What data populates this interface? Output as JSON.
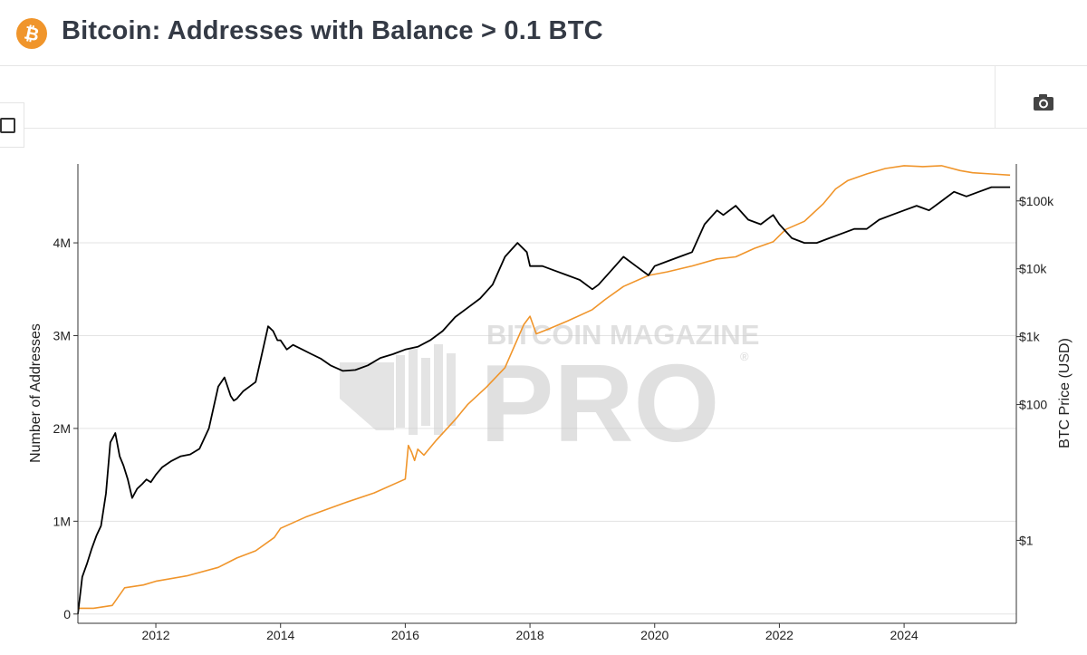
{
  "header": {
    "logo_glyph": "₿",
    "title": "Bitcoin: Addresses with Balance > 0.1 BTC"
  },
  "toolbar": {
    "camera_icon": "camera-icon",
    "checkbox_icon": "checkbox-icon"
  },
  "watermark": {
    "line1": "BITCOIN MAGAZINE",
    "line2": "PRO",
    "mark": "®"
  },
  "colors": {
    "addresses_line": "#000000",
    "price_line": "#f0952b",
    "brand": "#f0952b",
    "title": "#343a45"
  },
  "chart_data": {
    "type": "line",
    "title": "Bitcoin: Addresses with Balance > 0.1 BTC",
    "xlabel": "",
    "ylabel": "Number of Addresses",
    "y2label": "BTC Price (USD)",
    "x_range": [
      2010.75,
      2025.8
    ],
    "ylim": [
      -100000,
      4850000
    ],
    "y2_scale": "log",
    "y2lim": [
      0.06,
      350000
    ],
    "x_ticks": [
      "2012",
      "2014",
      "2016",
      "2018",
      "2020",
      "2022",
      "2024"
    ],
    "y_ticks": [
      "0",
      "1M",
      "2M",
      "3M",
      "4M"
    ],
    "y2_ticks": [
      "$1",
      "$100",
      "$1k",
      "$10k",
      "$100k"
    ],
    "grid": true,
    "legend": "none",
    "series": [
      {
        "axis": "left",
        "x": [
          2010.75,
          2010.82,
          2010.9,
          2010.97,
          2011.05,
          2011.12,
          2011.2,
          2011.27,
          2011.35,
          2011.42,
          2011.48,
          2011.55,
          2011.62,
          2011.7,
          2011.78,
          2011.85,
          2011.92,
          2012.0,
          2012.1,
          2012.25,
          2012.4,
          2012.55,
          2012.7,
          2012.85,
          2013.0,
          2013.1,
          2013.2,
          2013.25,
          2013.3,
          2013.4,
          2013.5,
          2013.6,
          2013.7,
          2013.8,
          2013.88,
          2013.95,
          2014.0,
          2014.1,
          2014.2,
          2014.35,
          2014.5,
          2014.65,
          2014.8,
          2015.0,
          2015.2,
          2015.4,
          2015.6,
          2015.8,
          2016.0,
          2016.2,
          2016.4,
          2016.6,
          2016.8,
          2017.0,
          2017.2,
          2017.4,
          2017.6,
          2017.8,
          2017.95,
          2018.0,
          2018.2,
          2018.4,
          2018.6,
          2018.8,
          2019.0,
          2019.1,
          2019.3,
          2019.5,
          2019.7,
          2019.9,
          2020.0,
          2020.2,
          2020.4,
          2020.6,
          2020.8,
          2021.0,
          2021.1,
          2021.3,
          2021.5,
          2021.7,
          2021.9,
          2022.0,
          2022.2,
          2022.4,
          2022.6,
          2022.8,
          2023.0,
          2023.2,
          2023.4,
          2023.6,
          2023.8,
          2024.0,
          2024.2,
          2024.4,
          2024.6,
          2024.8,
          2025.0,
          2025.2,
          2025.4,
          2025.6,
          2025.7
        ],
        "y": [
          0,
          400000,
          550000,
          700000,
          850000,
          950000,
          1300000,
          1850000,
          1950000,
          1700000,
          1600000,
          1450000,
          1250000,
          1350000,
          1400000,
          1450000,
          1420000,
          1500000,
          1580000,
          1650000,
          1700000,
          1720000,
          1780000,
          2000000,
          2450000,
          2550000,
          2350000,
          2300000,
          2320000,
          2400000,
          2450000,
          2500000,
          2800000,
          3100000,
          3050000,
          2950000,
          2950000,
          2850000,
          2900000,
          2850000,
          2800000,
          2750000,
          2680000,
          2620000,
          2630000,
          2680000,
          2760000,
          2800000,
          2850000,
          2880000,
          2950000,
          3050000,
          3200000,
          3300000,
          3400000,
          3550000,
          3850000,
          4000000,
          3900000,
          3750000,
          3750000,
          3700000,
          3650000,
          3600000,
          3500000,
          3550000,
          3700000,
          3850000,
          3750000,
          3650000,
          3750000,
          3800000,
          3850000,
          3900000,
          4200000,
          4350000,
          4300000,
          4400000,
          4250000,
          4200000,
          4300000,
          4200000,
          4050000,
          4000000,
          4000000,
          4050000,
          4100000,
          4150000,
          4150000,
          4250000,
          4300000,
          4350000,
          4400000,
          4350000,
          4450000,
          4550000,
          4500000,
          4550000,
          4600000,
          4600000,
          4600000
        ]
      },
      {
        "axis": "right",
        "x": [
          2010.75,
          2011.0,
          2011.3,
          2011.5,
          2011.8,
          2012.0,
          2012.5,
          2013.0,
          2013.3,
          2013.6,
          2013.9,
          2014.0,
          2014.4,
          2014.8,
          2015.0,
          2015.5,
          2016.0,
          2016.05,
          2016.1,
          2016.15,
          2016.2,
          2016.3,
          2016.5,
          2016.8,
          2017.0,
          2017.3,
          2017.6,
          2017.9,
          2018.0,
          2018.1,
          2018.3,
          2018.6,
          2019.0,
          2019.2,
          2019.5,
          2019.9,
          2020.2,
          2020.6,
          2021.0,
          2021.3,
          2021.6,
          2021.9,
          2022.1,
          2022.4,
          2022.7,
          2022.9,
          2023.1,
          2023.4,
          2023.7,
          2024.0,
          2024.3,
          2024.6,
          2024.9,
          2025.1,
          2025.4,
          2025.7
        ],
        "y": [
          0.1,
          0.1,
          0.11,
          0.2,
          0.22,
          0.25,
          0.3,
          0.4,
          0.55,
          0.7,
          1.1,
          1.5,
          2.2,
          3.0,
          3.5,
          5.0,
          8.0,
          25,
          20,
          15,
          22,
          18,
          30,
          60,
          100,
          180,
          350,
          1500,
          2000,
          1100,
          1300,
          1700,
          2500,
          3500,
          5500,
          8000,
          9000,
          11000,
          14000,
          15000,
          20000,
          25000,
          38000,
          50000,
          90000,
          150000,
          200000,
          250000,
          300000,
          330000,
          320000,
          330000,
          280000,
          260000,
          250000,
          240000
        ]
      }
    ]
  }
}
